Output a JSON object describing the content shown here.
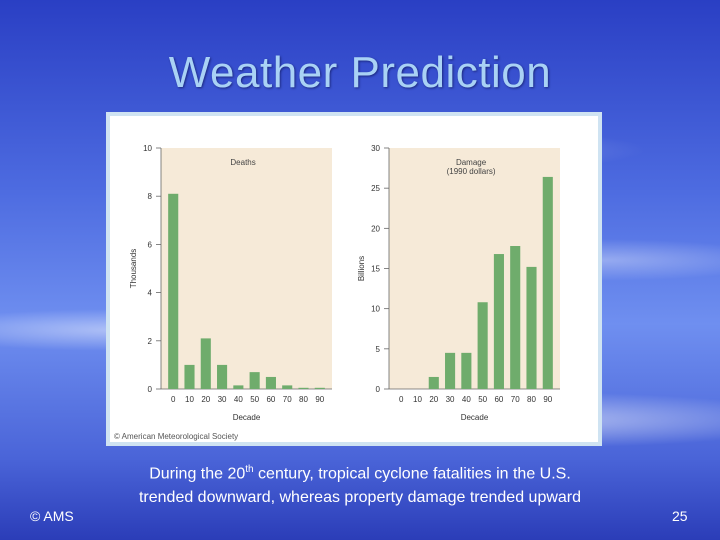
{
  "slide": {
    "title": "Weather Prediction",
    "caption_pre": "During the 20",
    "caption_sup": "th",
    "caption_post": " century, tropical cyclone fatalities in the U.S. trended downward, whereas property damage trended upward",
    "footer_left": "© AMS",
    "page_number": "25",
    "figure_credit": "© American Meteorological Society"
  },
  "colors": {
    "bar": "#6fac6c",
    "plot_bg": "#f6ead8",
    "frame": "#cfe3f2"
  },
  "chart_data": [
    {
      "type": "bar",
      "title": "Deaths",
      "xlabel": "Decade",
      "ylabel": "Thousands",
      "categories": [
        "0",
        "10",
        "20",
        "30",
        "40",
        "50",
        "60",
        "70",
        "80",
        "90"
      ],
      "values": [
        8.1,
        1.0,
        2.1,
        1.0,
        0.15,
        0.7,
        0.5,
        0.15,
        0.05,
        0.05
      ],
      "ylim": [
        0,
        10
      ],
      "yticks": [
        "0",
        "2",
        "4",
        "6",
        "8",
        "10"
      ]
    },
    {
      "type": "bar",
      "title": "Damage",
      "subtitle": "(1990 dollars)",
      "xlabel": "Decade",
      "ylabel": "Billions",
      "categories": [
        "0",
        "10",
        "20",
        "30",
        "40",
        "50",
        "60",
        "70",
        "80",
        "90"
      ],
      "values": [
        0,
        0,
        1.5,
        4.5,
        4.5,
        10.8,
        16.8,
        17.8,
        15.2,
        26.4
      ],
      "ylim": [
        0,
        30
      ],
      "yticks": [
        "0",
        "5",
        "10",
        "15",
        "20",
        "25",
        "30"
      ]
    }
  ]
}
